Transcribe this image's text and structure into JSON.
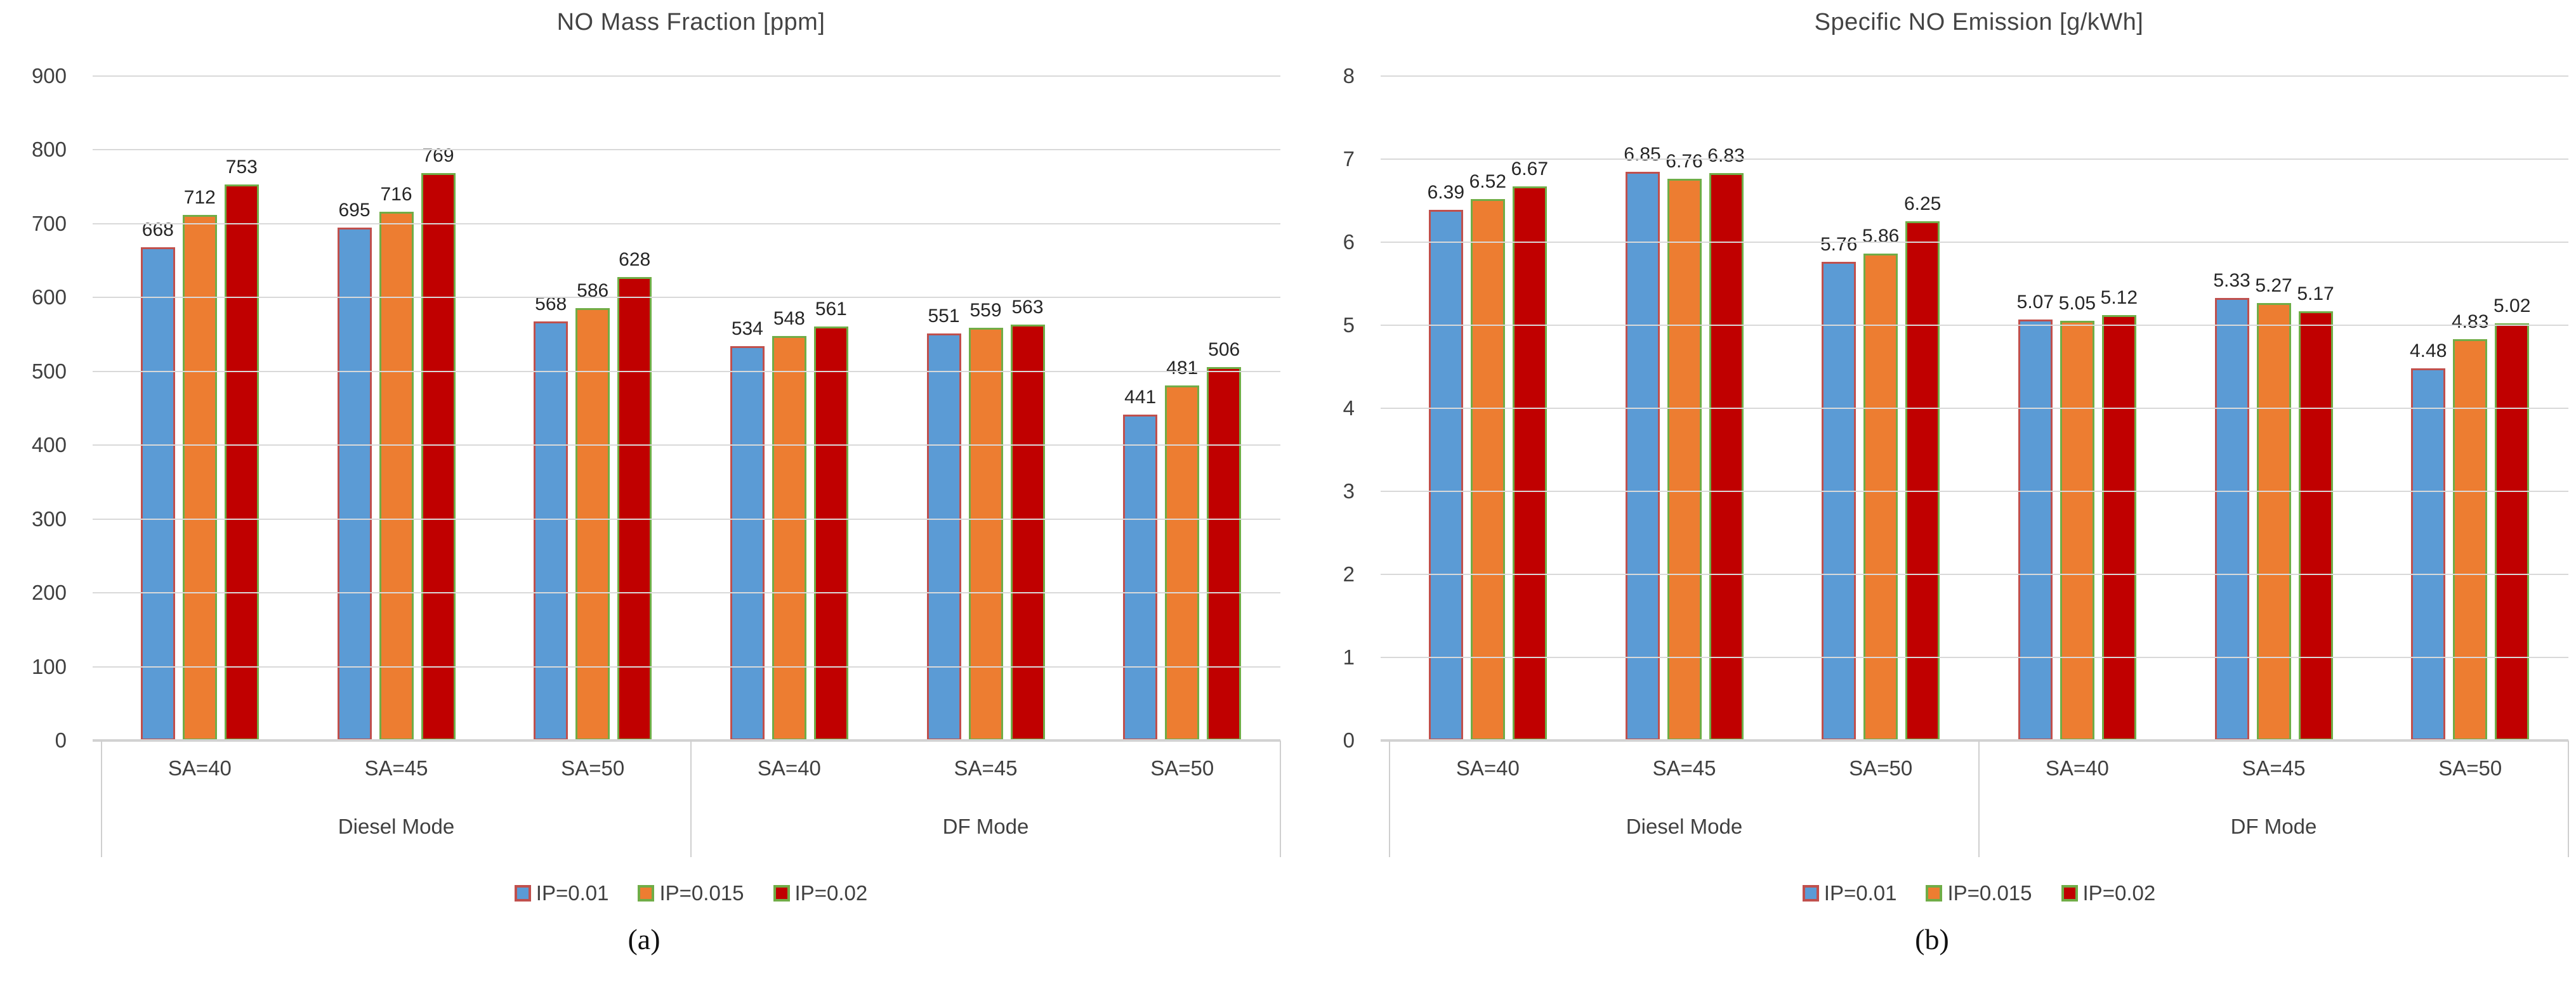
{
  "style_colors": {
    "gridline": "#D9D9D9",
    "axis_line": "#D2D2D2",
    "separator": "#CFCFCF",
    "tick_text": "#404040",
    "data_label_text": "#262626",
    "title_text": "#444444"
  },
  "series_styles": [
    {
      "fill": "#5B9BD5",
      "border": "#C0504D"
    },
    {
      "fill": "#ED7D31",
      "border": "#70AD47"
    },
    {
      "fill": "#C00000",
      "border": "#70AD47"
    }
  ],
  "chart_data": [
    {
      "type": "bar",
      "title": "NO Mass Fraction [ppm]",
      "caption": "(a)",
      "ylabel": "",
      "xlabel": "",
      "ylim": [
        0,
        900
      ],
      "ytick_step": 100,
      "yticks": [
        0,
        100,
        200,
        300,
        400,
        500,
        600,
        700,
        800,
        900
      ],
      "grid": true,
      "legend_position": "bottom",
      "label_decimals": 0,
      "mode_groups": [
        {
          "label": "Diesel Mode",
          "categories": [
            "SA=40",
            "SA=45",
            "SA=50"
          ]
        },
        {
          "label": "DF Mode",
          "categories": [
            "SA=40",
            "SA=45",
            "SA=50"
          ]
        }
      ],
      "categories": [
        "SA=40",
        "SA=45",
        "SA=50",
        "SA=40",
        "SA=45",
        "SA=50"
      ],
      "series": [
        {
          "name": "IP=0.01",
          "values": [
            668,
            695,
            568,
            534,
            551,
            441
          ]
        },
        {
          "name": "IP=0.015",
          "values": [
            712,
            716,
            586,
            548,
            559,
            481
          ]
        },
        {
          "name": "IP=0.02",
          "values": [
            753,
            769,
            628,
            561,
            563,
            506
          ]
        }
      ]
    },
    {
      "type": "bar",
      "title": "Specific NO Emission [g/kWh]",
      "caption": "(b)",
      "ylabel": "",
      "xlabel": "",
      "ylim": [
        0,
        8
      ],
      "ytick_step": 1,
      "yticks": [
        0,
        1,
        2,
        3,
        4,
        5,
        6,
        7,
        8
      ],
      "grid": true,
      "legend_position": "bottom",
      "label_decimals": 2,
      "mode_groups": [
        {
          "label": "Diesel Mode",
          "categories": [
            "SA=40",
            "SA=45",
            "SA=50"
          ]
        },
        {
          "label": "DF Mode",
          "categories": [
            "SA=40",
            "SA=45",
            "SA=50"
          ]
        }
      ],
      "categories": [
        "SA=40",
        "SA=45",
        "SA=50",
        "SA=40",
        "SA=45",
        "SA=50"
      ],
      "series": [
        {
          "name": "IP=0.01",
          "values": [
            6.39,
            6.85,
            5.76,
            5.07,
            5.33,
            4.48
          ]
        },
        {
          "name": "IP=0.015",
          "values": [
            6.52,
            6.76,
            5.86,
            5.05,
            5.27,
            4.83
          ]
        },
        {
          "name": "IP=0.02",
          "values": [
            6.67,
            6.83,
            6.25,
            5.12,
            5.17,
            5.02
          ]
        }
      ]
    }
  ]
}
